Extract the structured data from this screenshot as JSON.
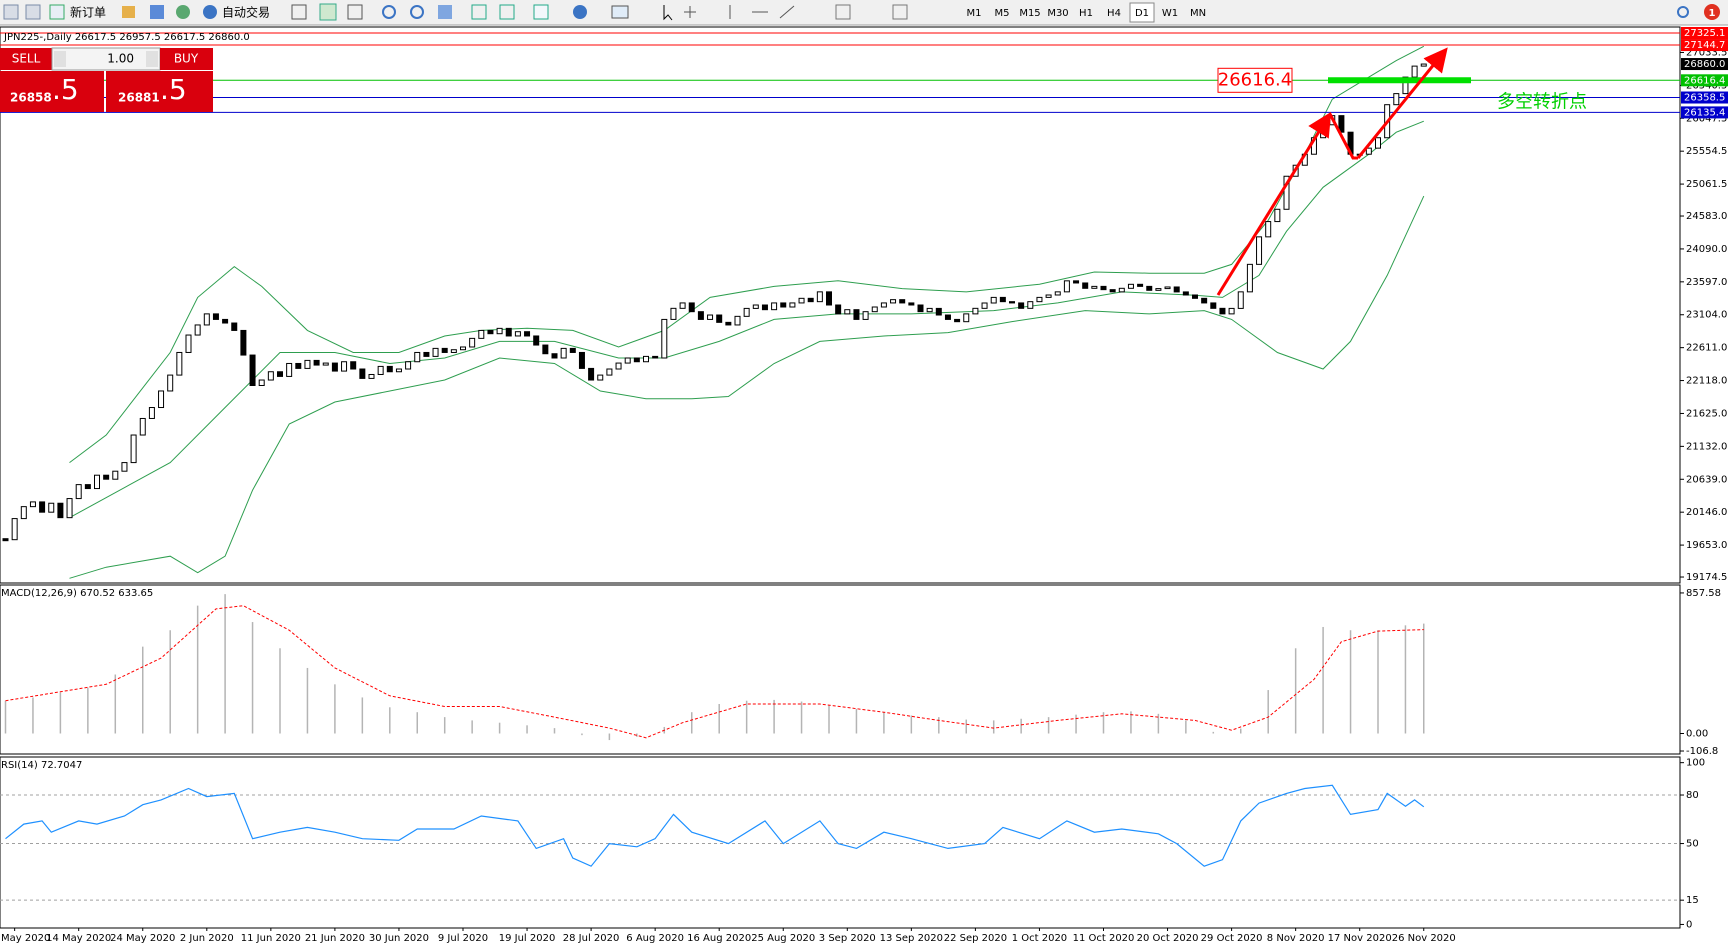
{
  "toolbar": {
    "new_order": "新订单",
    "auto_trading": "自动交易",
    "timeframes": [
      "M1",
      "M5",
      "M15",
      "M30",
      "H1",
      "H4",
      "D1",
      "W1",
      "MN"
    ],
    "active_timeframe": "D1",
    "notifications": "1"
  },
  "order_panel": {
    "sell": "SELL",
    "buy": "BUY",
    "lots": "1.00",
    "bid": {
      "main": "26858",
      "fraction": ".5"
    },
    "ask": {
      "main": "26881",
      "fraction": ".5"
    }
  },
  "chart_data": [
    {
      "type": "candlestick",
      "title": "JPN225-,Daily  26617.5 26957.5 26617.5 26860.0",
      "categories": [
        null,
        "May 2020",
        null,
        null,
        null,
        null,
        null,
        null,
        "14 May 2020",
        null,
        null,
        null,
        null,
        null,
        null,
        "24 May 2020",
        null,
        null,
        null,
        null,
        null,
        null,
        "2 Jun 2020",
        null,
        null,
        null,
        null,
        null,
        null,
        "11 Jun 2020",
        null,
        null,
        null,
        null,
        null,
        null,
        "21 Jun 2020",
        null,
        null,
        null,
        null,
        null,
        null,
        "30 Jun 2020",
        null,
        null,
        null,
        null,
        null,
        null,
        "9 Jul 2020",
        null,
        null,
        null,
        null,
        null,
        null,
        "19 Jul 2020",
        null,
        null,
        null,
        null,
        null,
        null,
        "28 Jul 2020",
        null,
        null,
        null,
        null,
        null,
        null,
        "6 Aug 2020",
        null,
        null,
        null,
        null,
        null,
        null,
        "16 Aug 2020",
        null,
        null,
        null,
        null,
        null,
        null,
        "25 Aug 2020",
        null,
        null,
        null,
        null,
        null,
        null,
        "3 Sep 2020",
        null,
        null,
        null,
        null,
        null,
        null,
        "13 Sep 2020",
        null,
        null,
        null,
        null,
        null,
        null,
        "22 Sep 2020",
        null,
        null,
        null,
        null,
        null,
        null,
        "1 Oct 2020",
        null,
        null,
        null,
        null,
        null,
        null,
        "11 Oct 2020",
        null,
        null,
        null,
        null,
        null,
        null,
        "20 Oct 2020",
        null,
        null,
        null,
        null,
        null,
        null,
        "29 Oct 2020",
        null,
        null,
        null,
        null,
        null,
        null,
        "8 Nov 2020",
        null,
        null,
        null,
        null,
        null,
        null,
        "17 Nov 2020",
        null,
        null,
        null,
        null,
        null,
        null,
        "26 Nov 2020"
      ],
      "values": [
        19734,
        20050,
        20229,
        20300,
        20146,
        20280,
        20064,
        20350,
        20559,
        20500,
        20700,
        20640,
        20760,
        20889,
        21302,
        21550,
        21714,
        21962,
        22200,
        22539,
        22800,
        22951,
        23117,
        23034,
        22980,
        22869,
        22500,
        22044,
        22126,
        22250,
        22180,
        22374,
        22300,
        22420,
        22350,
        22380,
        22260,
        22400,
        22291,
        22150,
        22209,
        22330,
        22250,
        22291,
        22400,
        22539,
        22480,
        22600,
        22539,
        22580,
        22621,
        22750,
        22869,
        22820,
        22900,
        22786,
        22850,
        22786,
        22650,
        22520,
        22456,
        22600,
        22539,
        22300,
        22126,
        22200,
        22291,
        22380,
        22456,
        22400,
        22480,
        22456,
        23034,
        23200,
        23281,
        23150,
        23034,
        23100,
        22990,
        22951,
        23080,
        23199,
        23250,
        23180,
        23281,
        23220,
        23281,
        23350,
        23300,
        23447,
        23250,
        23117,
        23180,
        23034,
        23150,
        23220,
        23281,
        23330,
        23281,
        23250,
        23150,
        23199,
        23100,
        23034,
        23000,
        23117,
        23200,
        23280,
        23364,
        23300,
        23281,
        23200,
        23300,
        23364,
        23400,
        23447,
        23612,
        23580,
        23500,
        23529,
        23480,
        23447,
        23500,
        23560,
        23529,
        23470,
        23496,
        23520,
        23446,
        23400,
        23350,
        23281,
        23200,
        23117,
        23199,
        23447,
        23859,
        24271,
        24500,
        24684,
        25179,
        25344,
        25509,
        25756,
        25950,
        26087,
        25839,
        25509,
        25509,
        25600,
        25756,
        26251,
        26417,
        26664,
        26829,
        26860
      ],
      "color_up": "#ffffff",
      "color_down": "#000000",
      "ylim": [
        19100,
        27400
      ],
      "yticks": [
        19174.5,
        {
          "value": 19653,
          "label": "19653.0"
        },
        {
          "value": 20146,
          "label": "20146.0"
        },
        {
          "value": 20639,
          "label": "20639.0"
        },
        {
          "value": 21132,
          "label": "21132.0"
        },
        {
          "value": 21625,
          "label": "21625.0"
        },
        {
          "value": 22118,
          "label": "22118.0"
        },
        {
          "value": 22611,
          "label": "22611.0"
        },
        {
          "value": 23104,
          "label": "23104.0"
        },
        {
          "value": 23597,
          "label": "23597.0"
        },
        {
          "value": 24090,
          "label": "24090.0"
        },
        {
          "value": 24583,
          "label": "24583.0"
        },
        25061.5,
        25554.5,
        26047.5,
        26540.5,
        27033.5
      ],
      "levels": [
        {
          "price": 27325.1,
          "color": "#ff0000",
          "line": true
        },
        {
          "price": 27144.7,
          "color": "#ff0000",
          "line": true
        },
        {
          "price": {
            "value": 26860,
            "label": "26860.0"
          },
          "color": "#000000",
          "line": false
        },
        {
          "price": 26616.4,
          "color": "#00c000",
          "line": true
        },
        {
          "price": 26358.5,
          "color": "#0000cc",
          "line": true
        },
        {
          "price": 26135.4,
          "color": "#0000cc",
          "line": true
        }
      ],
      "bands": [
        {
          "color": "#2e9e4f",
          "x": [
            7,
            11,
            18,
            21,
            25,
            28,
            33,
            38,
            43,
            48,
            52,
            57,
            62,
            67,
            72,
            77,
            84,
            91,
            98,
            105,
            113,
            119,
            125,
            131,
            134,
            138,
            142,
            145,
            149,
            152,
            155
          ],
          "values": [
            20889,
            21302,
            22539,
            23364,
            23826,
            23529,
            22869,
            22539,
            22539,
            22786,
            22869,
            22902,
            22869,
            22621,
            22869,
            23364,
            23529,
            23612,
            23496,
            23446,
            23562,
            23744,
            23727,
            23727,
            23859,
            24519,
            25509,
            26334,
            26664,
            26911,
            27126
          ]
        },
        {
          "color": "#2e9e4f",
          "x": [
            7,
            18,
            24,
            30,
            36,
            42,
            48,
            54,
            60,
            67,
            72,
            78,
            84,
            91,
            99,
            108,
            115,
            122,
            130,
            133,
            137,
            140,
            144,
            149,
            152,
            155
          ],
          "values": [
            20064,
            20889,
            21714,
            22539,
            22539,
            22374,
            22456,
            22704,
            22704,
            22456,
            22456,
            22704,
            23034,
            23117,
            23117,
            23166,
            23281,
            23446,
            23397,
            23364,
            23694,
            24354,
            25014,
            25509,
            25839,
            26004
          ]
        },
        {
          "color": "#2e9e4f",
          "x": [
            7,
            11,
            18,
            21,
            24,
            27,
            31,
            36,
            42,
            48,
            54,
            60,
            65,
            70,
            75,
            79,
            84,
            89,
            96,
            103,
            110,
            118,
            125,
            131,
            134,
            139,
            144,
            147,
            151,
            155
          ],
          "values": [
            19156,
            19321,
            19486,
            19239,
            19486,
            20477,
            21467,
            21797,
            21962,
            22126,
            22456,
            22374,
            21962,
            21846,
            21846,
            21879,
            22374,
            22704,
            22786,
            22836,
            23001,
            23166,
            23117,
            23166,
            23034,
            22539,
            22291,
            22704,
            23694,
            24882
          ]
        }
      ],
      "annotation": {
        "price_box": 26616.4,
        "text": "多空转折点"
      }
    },
    {
      "type": "macd",
      "label": "MACD(12,26,9) 670.52 633.65",
      "ylim": [
        -125,
        906
      ],
      "yticks": [
        857.58,
        {
          "value": 0,
          "label": "0.00"
        },
        -106.8
      ],
      "histogram": {
        "color": "#b4b4b4",
        "x": [
          0,
          3,
          6,
          9,
          12,
          15,
          18,
          21,
          24,
          27,
          30,
          33,
          36,
          39,
          42,
          45,
          48,
          51,
          54,
          57,
          60,
          63,
          66,
          69,
          72,
          75,
          78,
          81,
          84,
          87,
          90,
          93,
          96,
          99,
          102,
          105,
          108,
          111,
          114,
          117,
          120,
          123,
          126,
          129,
          132,
          135,
          138,
          141,
          144,
          147,
          150,
          153,
          155
        ],
        "values": [
          200,
          220,
          250,
          280,
          360,
          530,
          630,
          780,
          850,
          680,
          520,
          400,
          300,
          220,
          160,
          130,
          100,
          80,
          66,
          50,
          33,
          -10,
          -40,
          -20,
          40,
          130,
          180,
          200,
          205,
          195,
          170,
          150,
          130,
          110,
          100,
          85,
          80,
          90,
          100,
          115,
          130,
          135,
          120,
          80,
          10,
          30,
          265,
          520,
          650,
          630,
          630,
          660,
          670.52
        ]
      },
      "signal": {
        "color": "#ff0000",
        "x": [
          0,
          11,
          17,
          23,
          26,
          31,
          36,
          42,
          48,
          54,
          60,
          66,
          70,
          74,
          81,
          89,
          96,
          102,
          108,
          115,
          122,
          130,
          134,
          138,
          143,
          146,
          150,
          155
        ],
        "values": [
          200,
          300,
          460,
          760,
          780,
          630,
          400,
          230,
          165,
          165,
          100,
          33,
          -26,
          66,
          180,
          180,
          130,
          80,
          33,
          80,
          120,
          80,
          20,
          100,
          330,
          560,
          625,
          633.65
        ]
      }
    },
    {
      "type": "line",
      "label": "RSI(14) 72.7047",
      "ylim": [
        -2.2,
        103.5
      ],
      "yticks": [
        100,
        80,
        50,
        15,
        0
      ],
      "series": {
        "color": "#1e90ff",
        "x": [
          0,
          2,
          4,
          5,
          8,
          10,
          13,
          15,
          17,
          20,
          22,
          25,
          27,
          30,
          33,
          36,
          39,
          43,
          45,
          49,
          52,
          56,
          58,
          61,
          62,
          64,
          66,
          69,
          71,
          73,
          75,
          79,
          83,
          85,
          89,
          91,
          93,
          96,
          99,
          103,
          107,
          109,
          113,
          116,
          119,
          122,
          126,
          128,
          131,
          133,
          135,
          137,
          140,
          142,
          145,
          147,
          150,
          151,
          153,
          154,
          155
        ],
        "values": [
          53,
          62,
          64,
          57,
          64,
          62,
          67,
          74,
          77,
          84,
          79,
          81,
          53,
          57,
          60,
          57,
          53,
          52,
          59,
          59,
          67,
          64,
          47,
          53,
          41,
          36,
          50,
          48,
          53,
          68,
          57,
          50,
          64,
          50,
          64,
          50,
          47,
          57,
          53,
          47,
          50,
          60,
          53,
          64,
          57,
          59,
          56,
          50,
          36,
          40,
          64,
          75,
          81,
          84,
          86,
          68,
          71,
          81,
          73,
          77,
          72.7047
        ]
      }
    }
  ]
}
